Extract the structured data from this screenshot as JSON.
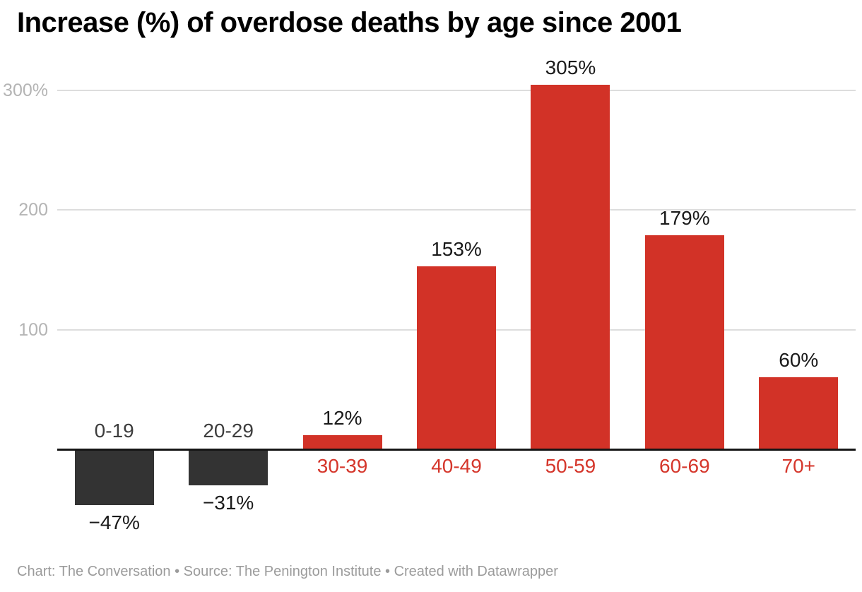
{
  "title": "Increase (%) of overdose deaths by age since 2001",
  "footer": {
    "text": "Chart: The Conversation • Source: The Penington Institute • Created with Datawrapper"
  },
  "chart_data": {
    "type": "bar",
    "title": "Increase (%) of overdose deaths by age since 2001",
    "categories": [
      "0-19",
      "20-29",
      "30-39",
      "40-49",
      "50-59",
      "60-69",
      "70+"
    ],
    "values": [
      -47,
      -31,
      12,
      153,
      305,
      179,
      60
    ],
    "value_labels": [
      "−47%",
      "−31%",
      "12%",
      "153%",
      "305%",
      "179%",
      "60%"
    ],
    "xlabel": "",
    "ylabel": "",
    "y_ticks": [
      100,
      200,
      300
    ],
    "y_tick_labels": [
      "100",
      "200",
      "300%"
    ],
    "ylim": [
      -60,
      320
    ],
    "grid": true,
    "legend": "none",
    "colors": {
      "positive_bar": "#d23227",
      "negative_bar": "#333333",
      "positive_category_label": "#d5362b",
      "negative_category_label": "#3d3d3d",
      "value_label": "#1a1a1a",
      "tick_label": "#b4b4b4",
      "gridline": "#dddddd",
      "axis_line": "#151515"
    }
  }
}
